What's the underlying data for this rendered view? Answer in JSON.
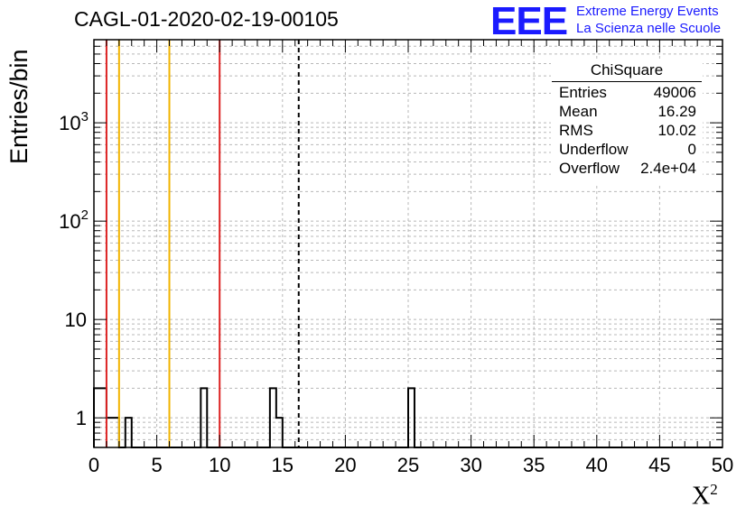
{
  "title": "CAGL-01-2020-02-19-00105",
  "logo": {
    "mark": "EEE",
    "line1": "Extreme Energy Events",
    "line2": "La Scienza nelle Scuole",
    "color": "#1a1aff"
  },
  "stats": {
    "title": "ChiSquare",
    "rows": [
      {
        "key": "Entries",
        "value": "49006"
      },
      {
        "key": "Mean",
        "value": "16.29"
      },
      {
        "key": "RMS",
        "value": "10.02"
      },
      {
        "key": "Underflow",
        "value": "0"
      },
      {
        "key": "Overflow",
        "value": "2.4e+04"
      }
    ]
  },
  "chart_data": {
    "type": "histogram",
    "title": "CAGL-01-2020-02-19-00105",
    "xlabel": "X",
    "xlabel_sup": "2",
    "ylabel": "Entries/bin",
    "xlim": [
      0,
      50
    ],
    "ylim": [
      0.5,
      7000
    ],
    "yscale": "log",
    "grid": true,
    "bin_width": 0.5,
    "x_ticks": [
      0,
      5,
      10,
      15,
      20,
      25,
      30,
      35,
      40,
      45,
      50
    ],
    "x_tick_labels": [
      "0",
      "5",
      "10",
      "15",
      "20",
      "25",
      "30",
      "35",
      "40",
      "45",
      "50"
    ],
    "y_ticks": [
      1,
      10,
      100,
      1000
    ],
    "y_tick_labels": [
      "1",
      "10",
      "10^2",
      "10^3"
    ],
    "counts": [
      2,
      2,
      1,
      1,
      0,
      1,
      0,
      0,
      0,
      0,
      0,
      0,
      0,
      0,
      0,
      0,
      0,
      2,
      0,
      0,
      0,
      0,
      0,
      0,
      0,
      0,
      0,
      0,
      2,
      1,
      0,
      0,
      0,
      0,
      0,
      0,
      0,
      0,
      0,
      0,
      0,
      0,
      0,
      0,
      0,
      0,
      0,
      0,
      0,
      0,
      2,
      0,
      0,
      0,
      0,
      0,
      0,
      0,
      0,
      0,
      0,
      0,
      0,
      0,
      0,
      0,
      0,
      0,
      0,
      0,
      0,
      0,
      0,
      0,
      0,
      0,
      0,
      0,
      0,
      0,
      0,
      0,
      0,
      0,
      0,
      0,
      0,
      0,
      0,
      0,
      0,
      0,
      0,
      0,
      0,
      0,
      0,
      0,
      0,
      0
    ],
    "vertical_lines": [
      {
        "x": 1,
        "color": "#dd2222",
        "style": "solid"
      },
      {
        "x": 2,
        "color": "#f2b400",
        "style": "solid"
      },
      {
        "x": 6,
        "color": "#f2b400",
        "style": "solid"
      },
      {
        "x": 10,
        "color": "#dd2222",
        "style": "solid"
      },
      {
        "x": 16.29,
        "color": "#000000",
        "style": "dashed"
      }
    ]
  }
}
